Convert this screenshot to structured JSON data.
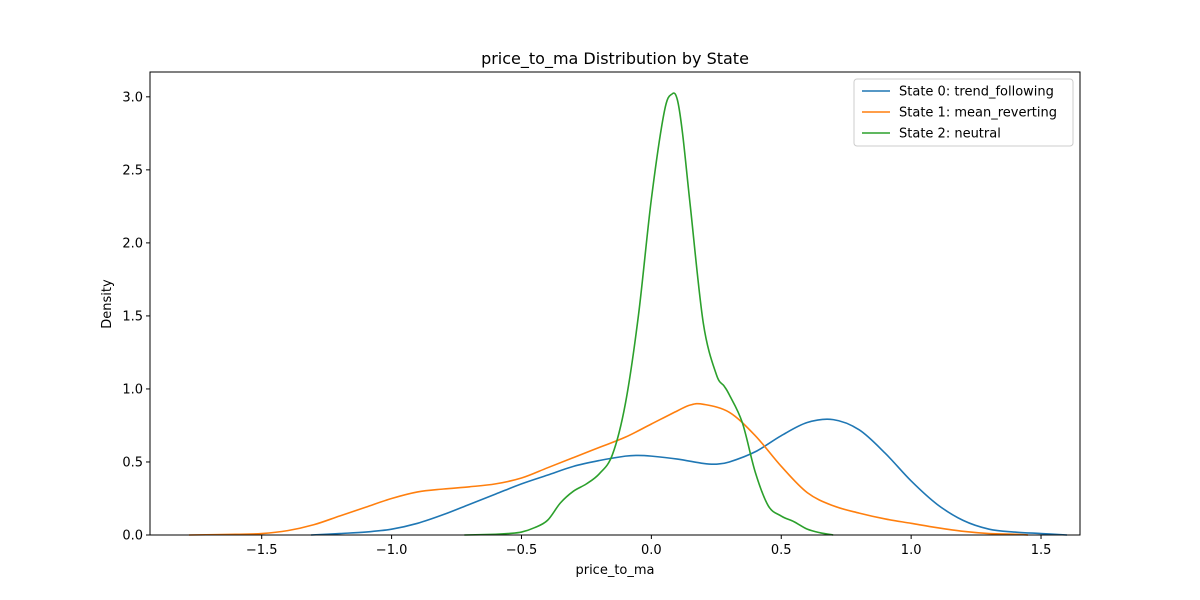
{
  "chart_data": {
    "type": "line",
    "title": "price_to_ma Distribution by State",
    "xlabel": "price_to_ma",
    "ylabel": "Density",
    "xlim": [
      -1.93,
      1.65
    ],
    "ylim": [
      0,
      3.17
    ],
    "xticks": [
      -1.5,
      -1.0,
      -0.5,
      0.0,
      0.5,
      1.0,
      1.5
    ],
    "xtick_labels": [
      "−1.5",
      "−1.0",
      "−0.5",
      "0.0",
      "0.5",
      "1.0",
      "1.5"
    ],
    "yticks": [
      0.0,
      0.5,
      1.0,
      1.5,
      2.0,
      2.5,
      3.0
    ],
    "ytick_labels": [
      "0.0",
      "0.5",
      "1.0",
      "1.5",
      "2.0",
      "2.5",
      "3.0"
    ],
    "grid": false,
    "legend_position": "top-right",
    "series": [
      {
        "name": "State 0: trend_following",
        "color": "#1f77b4",
        "x": [
          -1.31,
          -1.2,
          -1.1,
          -1.0,
          -0.9,
          -0.8,
          -0.7,
          -0.6,
          -0.5,
          -0.4,
          -0.3,
          -0.2,
          -0.1,
          -0.05,
          0.0,
          0.1,
          0.2,
          0.25,
          0.3,
          0.4,
          0.5,
          0.6,
          0.7,
          0.8,
          0.9,
          1.0,
          1.1,
          1.2,
          1.3,
          1.4,
          1.5,
          1.6
        ],
        "y": [
          0.0,
          0.01,
          0.02,
          0.04,
          0.08,
          0.14,
          0.21,
          0.28,
          0.35,
          0.41,
          0.47,
          0.51,
          0.54,
          0.545,
          0.54,
          0.52,
          0.49,
          0.485,
          0.5,
          0.57,
          0.68,
          0.77,
          0.79,
          0.72,
          0.56,
          0.37,
          0.21,
          0.1,
          0.04,
          0.02,
          0.01,
          0.0
        ]
      },
      {
        "name": "State 1: mean_reverting",
        "color": "#ff7f0e",
        "x": [
          -1.78,
          -1.6,
          -1.5,
          -1.4,
          -1.3,
          -1.2,
          -1.1,
          -1.0,
          -0.9,
          -0.8,
          -0.7,
          -0.6,
          -0.5,
          -0.4,
          -0.3,
          -0.2,
          -0.1,
          0.0,
          0.1,
          0.15,
          0.2,
          0.3,
          0.4,
          0.5,
          0.6,
          0.7,
          0.8,
          0.9,
          1.0,
          1.1,
          1.2,
          1.3,
          1.4,
          1.45
        ],
        "y": [
          0.0,
          0.005,
          0.01,
          0.03,
          0.07,
          0.13,
          0.19,
          0.25,
          0.295,
          0.315,
          0.33,
          0.35,
          0.39,
          0.46,
          0.53,
          0.6,
          0.67,
          0.76,
          0.85,
          0.89,
          0.895,
          0.84,
          0.68,
          0.47,
          0.29,
          0.2,
          0.15,
          0.11,
          0.08,
          0.05,
          0.025,
          0.01,
          0.005,
          0.0
        ]
      },
      {
        "name": "State 2: neutral",
        "color": "#2ca02c",
        "x": [
          -0.72,
          -0.6,
          -0.55,
          -0.5,
          -0.45,
          -0.4,
          -0.35,
          -0.3,
          -0.25,
          -0.2,
          -0.15,
          -0.1,
          -0.05,
          0.0,
          0.05,
          0.08,
          0.1,
          0.12,
          0.15,
          0.2,
          0.25,
          0.28,
          0.3,
          0.35,
          0.4,
          0.45,
          0.5,
          0.55,
          0.6,
          0.65,
          0.7
        ],
        "y": [
          0.0,
          0.005,
          0.01,
          0.02,
          0.05,
          0.1,
          0.22,
          0.3,
          0.35,
          0.42,
          0.55,
          0.9,
          1.5,
          2.3,
          2.9,
          3.02,
          2.98,
          2.75,
          2.25,
          1.45,
          1.1,
          1.02,
          0.96,
          0.77,
          0.43,
          0.2,
          0.13,
          0.09,
          0.04,
          0.015,
          0.0
        ]
      }
    ]
  }
}
